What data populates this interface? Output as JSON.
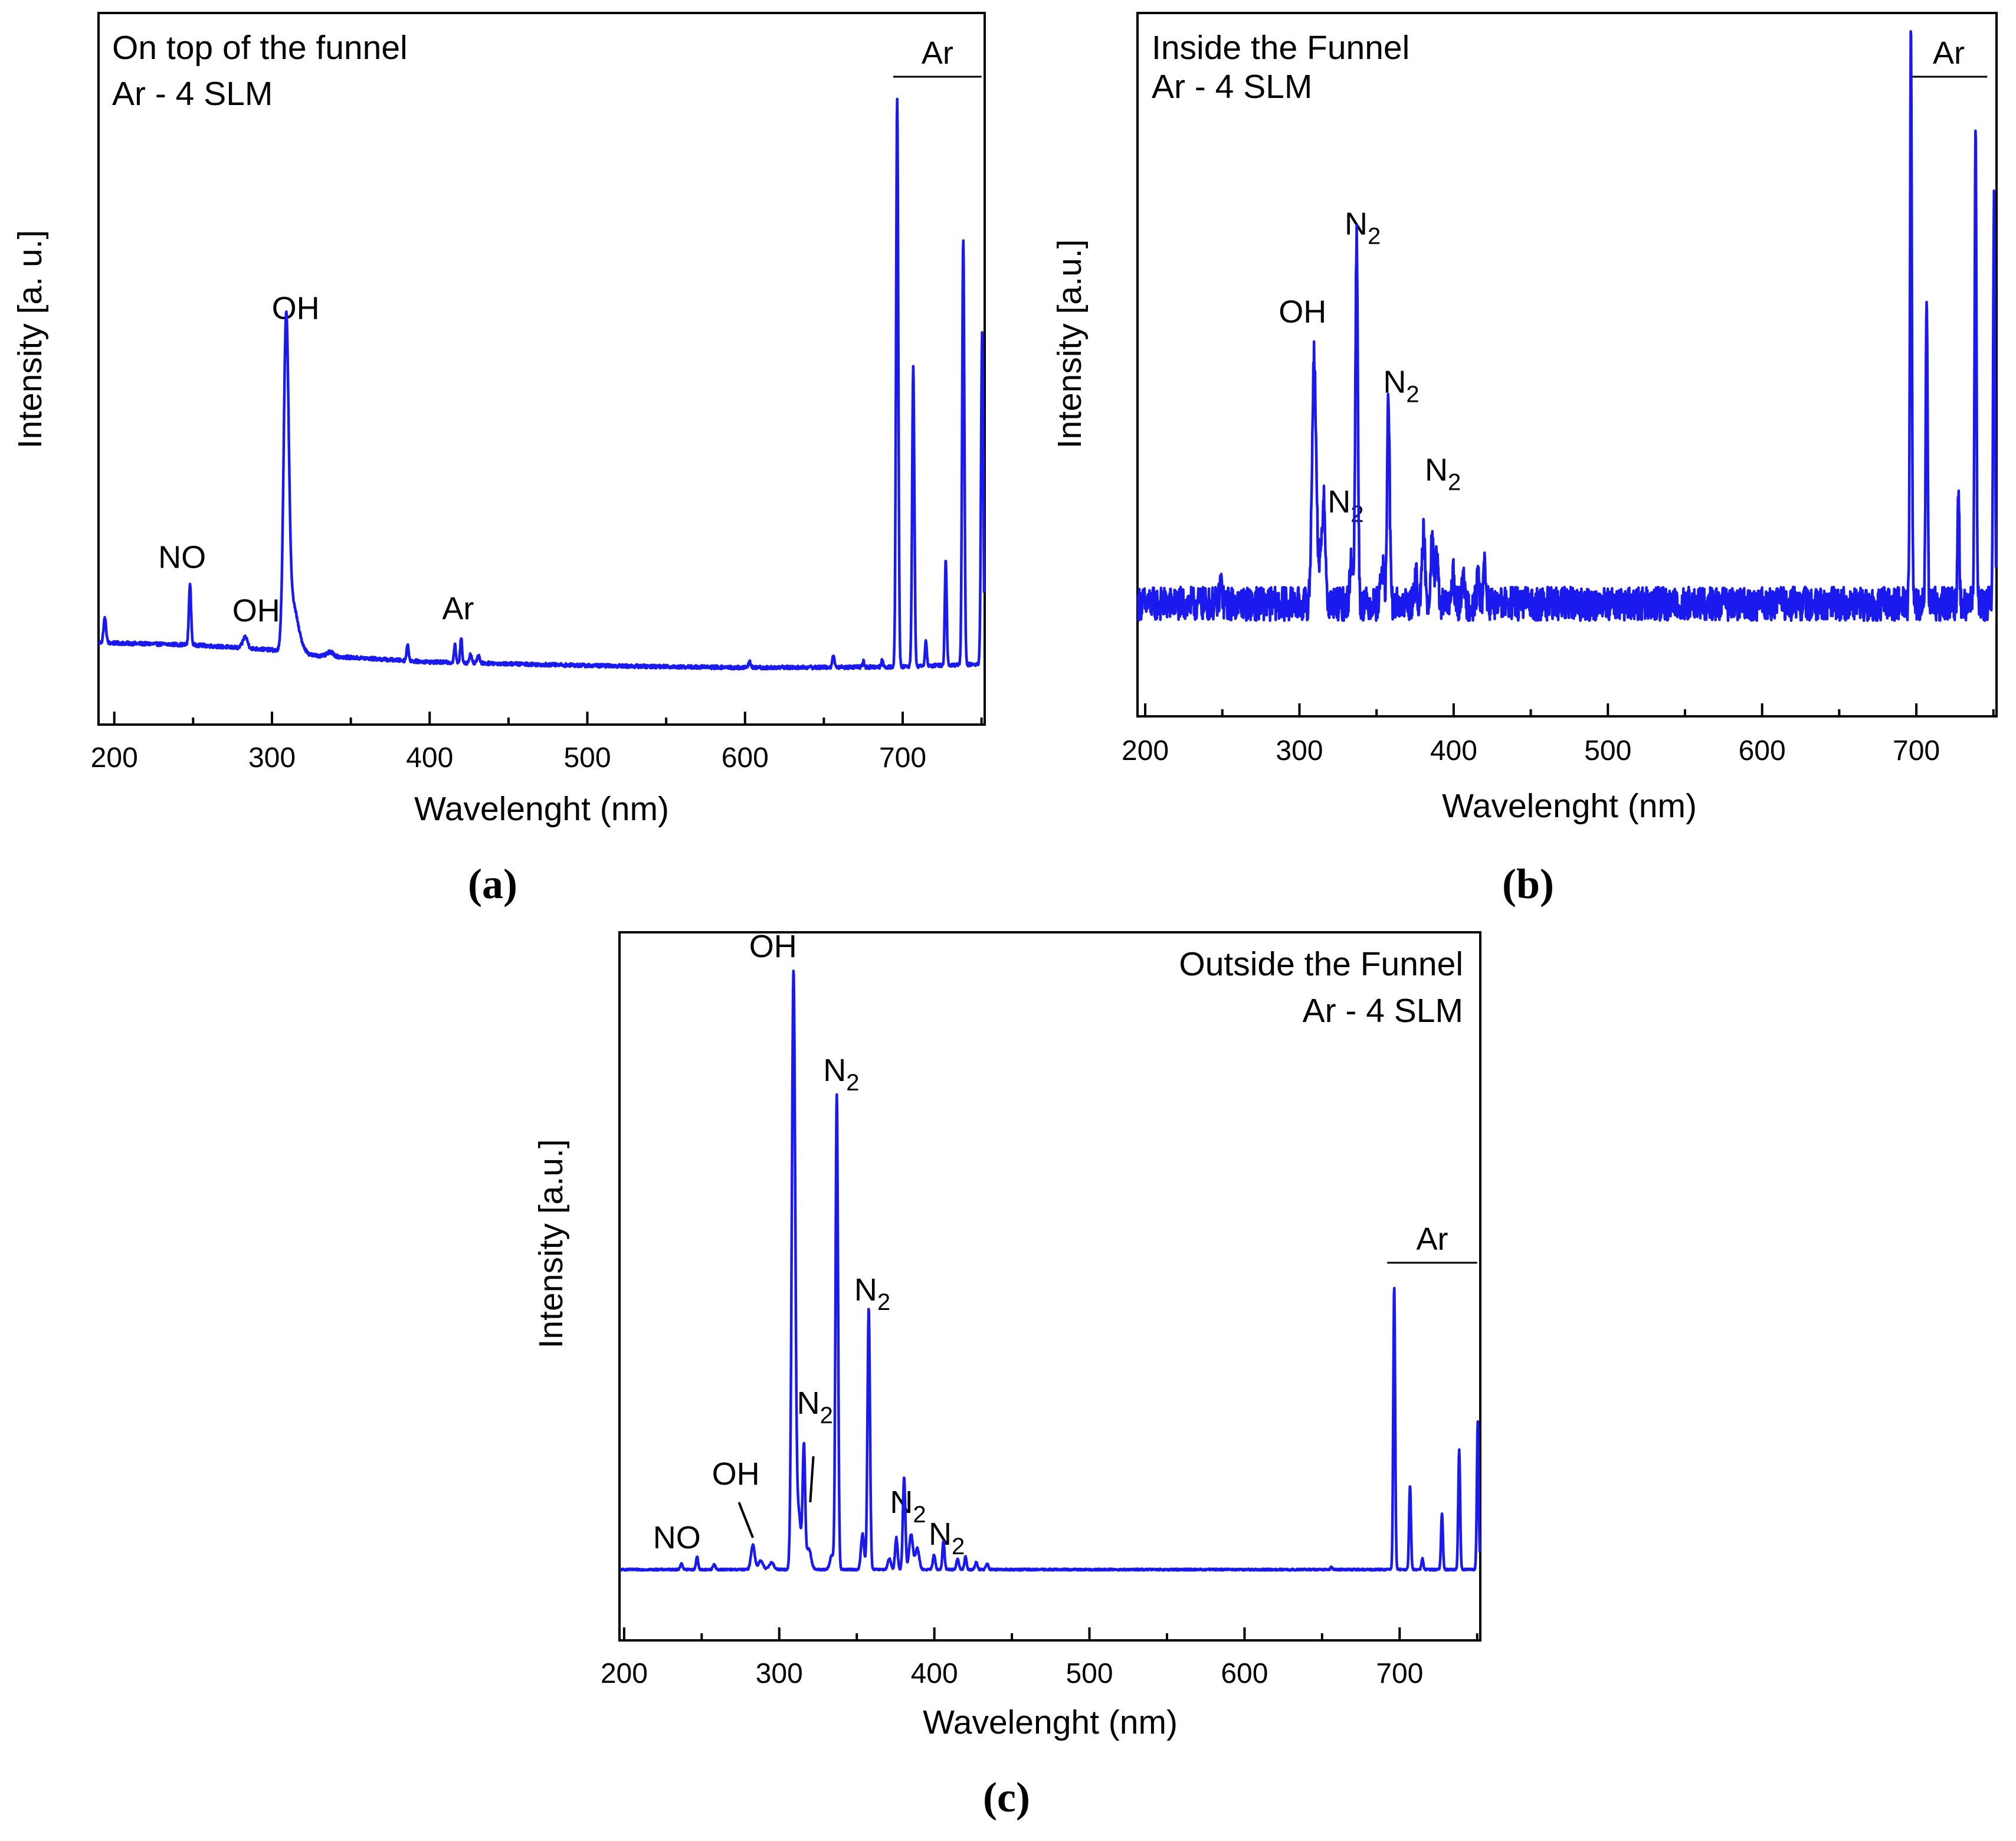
{
  "figure_labels": [
    "(a)",
    "(b)",
    "(c)"
  ],
  "chart_data": [
    {
      "id": "a",
      "type": "line",
      "panel_label": "(a)",
      "title_lines": [
        "On top of the funnel",
        "Ar - 4 SLM"
      ],
      "xlabel": "Wavelenght (nm)",
      "ylabel": "Intensity [a. u.]",
      "xlim": [
        190,
        752
      ],
      "ylim": [
        0,
        100
      ],
      "xticks": [
        200,
        300,
        400,
        500,
        600,
        700
      ],
      "xtick_labels": [
        "200",
        "300",
        "400",
        "500",
        "600",
        "700"
      ],
      "series": [
        {
          "name": "spectrum",
          "color": "#1a1aee",
          "baseline": [
            [
              192,
              11.5
            ],
            [
              250,
              11.2
            ],
            [
              300,
              10.5
            ],
            [
              320,
              9.8
            ],
            [
              400,
              8.8
            ],
            [
              500,
              8.3
            ],
            [
              600,
              8.0
            ],
            [
              690,
              8.1
            ],
            [
              752,
              8.5
            ]
          ],
          "noise": 0.25,
          "peaks": [
            {
              "x": 194,
              "h": 3.5,
              "w": 0.8
            },
            {
              "x": 248,
              "h": 8.5,
              "w": 0.7
            },
            {
              "x": 283,
              "h": 1.6,
              "w": 1.5
            },
            {
              "x": 309,
              "h": 46,
              "w": 1.6
            },
            {
              "x": 313,
              "h": 6,
              "w": 2.5
            },
            {
              "x": 317,
              "h": 2,
              "w": 3
            },
            {
              "x": 337,
              "h": 0.6,
              "w": 2
            },
            {
              "x": 386,
              "h": 2.2,
              "w": 0.7
            },
            {
              "x": 416,
              "h": 2.5,
              "w": 0.6
            },
            {
              "x": 420,
              "h": 3.5,
              "w": 0.6
            },
            {
              "x": 426,
              "h": 1.2,
              "w": 0.8
            },
            {
              "x": 431,
              "h": 1.0,
              "w": 0.8
            },
            {
              "x": 603,
              "h": 0.8,
              "w": 0.8
            },
            {
              "x": 656,
              "h": 1.8,
              "w": 0.6
            },
            {
              "x": 675,
              "h": 0.8,
              "w": 0.6
            },
            {
              "x": 687,
              "h": 1.0,
              "w": 0.6
            },
            {
              "x": 696.5,
              "h": 80,
              "w": 0.7
            },
            {
              "x": 706.7,
              "h": 42,
              "w": 0.7
            },
            {
              "x": 714.7,
              "h": 3.5,
              "w": 0.6
            },
            {
              "x": 727.3,
              "h": 15,
              "w": 0.6
            },
            {
              "x": 738.4,
              "h": 60,
              "w": 0.7
            },
            {
              "x": 750.4,
              "h": 47,
              "w": 0.7
            }
          ]
        }
      ],
      "annotations": [
        {
          "text": "NO",
          "x": 243,
          "y": 22
        },
        {
          "text": "OH",
          "x": 290,
          "y": 14.5
        },
        {
          "text": "OH",
          "x": 315,
          "y": 57
        },
        {
          "text": "Ar",
          "x": 418,
          "y": 14.8
        }
      ],
      "region_labels": [
        {
          "text": "Ar",
          "x_from": 694,
          "x_to": 750
        }
      ]
    },
    {
      "id": "b",
      "type": "line",
      "panel_label": "(b)",
      "title_lines": [
        "Inside the Funnel",
        "Ar - 4 SLM"
      ],
      "xlabel": "Wavelenght (nm)",
      "ylabel": "Intensity [a.u.]",
      "xlim": [
        195,
        752
      ],
      "ylim": [
        0,
        100
      ],
      "xticks": [
        200,
        300,
        400,
        500,
        600,
        700
      ],
      "xtick_labels": [
        "200",
        "300",
        "400",
        "500",
        "600",
        "700"
      ],
      "series": [
        {
          "name": "spectrum",
          "color": "#1a1aee",
          "baseline": [
            [
              195,
              16
            ],
            [
              400,
              16
            ],
            [
              500,
              16
            ],
            [
              752,
              16
            ]
          ],
          "noise": 2.4,
          "peaks": [
            {
              "x": 249,
              "h": 3,
              "w": 0.8
            },
            {
              "x": 309.5,
              "h": 35,
              "w": 1.3
            },
            {
              "x": 315.9,
              "h": 14,
              "w": 0.9
            },
            {
              "x": 313.5,
              "h": 6,
              "w": 1.5
            },
            {
              "x": 337.1,
              "h": 52,
              "w": 0.8
            },
            {
              "x": 333.9,
              "h": 6,
              "w": 1.2
            },
            {
              "x": 357.7,
              "h": 30,
              "w": 0.8
            },
            {
              "x": 353.7,
              "h": 5,
              "w": 1.2
            },
            {
              "x": 375.5,
              "h": 4,
              "w": 0.8
            },
            {
              "x": 380.5,
              "h": 10,
              "w": 0.9
            },
            {
              "x": 386,
              "h": 10,
              "w": 0.9
            },
            {
              "x": 389,
              "h": 6,
              "w": 0.9
            },
            {
              "x": 399.8,
              "h": 4,
              "w": 0.8
            },
            {
              "x": 405.9,
              "h": 4,
              "w": 0.8
            },
            {
              "x": 415.9,
              "h": 4,
              "w": 0.8
            },
            {
              "x": 420.1,
              "h": 6,
              "w": 0.8
            },
            {
              "x": 696.5,
              "h": 82,
              "w": 0.6
            },
            {
              "x": 706.7,
              "h": 44,
              "w": 0.6
            },
            {
              "x": 727.3,
              "h": 16,
              "w": 0.6
            },
            {
              "x": 738.4,
              "h": 68,
              "w": 0.6
            },
            {
              "x": 750.4,
              "h": 58,
              "w": 0.6
            }
          ]
        }
      ],
      "annotations": [
        {
          "text": "OH",
          "x": 302,
          "y": 56
        },
        {
          "text": "N",
          "sub": "2",
          "x": 330,
          "y": 29
        },
        {
          "text": "N",
          "sub": "2",
          "x": 341,
          "y": 68.5
        },
        {
          "text": "N",
          "sub": "2",
          "x": 366,
          "y": 46
        },
        {
          "text": "N",
          "sub": "2",
          "x": 393,
          "y": 33.5
        }
      ],
      "region_labels": [
        {
          "text": "Ar",
          "x_from": 696,
          "x_to": 746
        }
      ]
    },
    {
      "id": "c",
      "type": "line",
      "panel_label": "(c)",
      "title_lines": [
        "Outside the Funnel",
        "Ar - 4 SLM"
      ],
      "title_align": "right",
      "xlabel": "Wavelenght (nm)",
      "ylabel": "Intensity [a.u.]",
      "xlim": [
        197,
        752
      ],
      "ylim": [
        0,
        100
      ],
      "xticks": [
        200,
        300,
        400,
        500,
        600,
        700
      ],
      "xtick_labels": [
        "200",
        "300",
        "400",
        "500",
        "600",
        "700"
      ],
      "series": [
        {
          "name": "spectrum",
          "color": "#1a1aee",
          "baseline": [
            [
              197,
              10
            ],
            [
              752,
              10
            ]
          ],
          "noise": 0.12,
          "peaks": [
            {
              "x": 237,
              "h": 0.8,
              "w": 0.8
            },
            {
              "x": 247,
              "h": 1.8,
              "w": 0.7
            },
            {
              "x": 258,
              "h": 0.7,
              "w": 0.8
            },
            {
              "x": 283,
              "h": 3.5,
              "w": 1.2
            },
            {
              "x": 288,
              "h": 1.2,
              "w": 1.5
            },
            {
              "x": 295,
              "h": 1.0,
              "w": 1.5
            },
            {
              "x": 309.2,
              "h": 84,
              "w": 1.1
            },
            {
              "x": 312.5,
              "h": 8,
              "w": 1.5
            },
            {
              "x": 315.9,
              "h": 17,
              "w": 0.8
            },
            {
              "x": 319,
              "h": 3,
              "w": 1.5
            },
            {
              "x": 337.1,
              "h": 67,
              "w": 0.8
            },
            {
              "x": 333.9,
              "h": 2,
              "w": 1.2
            },
            {
              "x": 353.7,
              "h": 5,
              "w": 1.0
            },
            {
              "x": 357.7,
              "h": 37,
              "w": 0.8
            },
            {
              "x": 371,
              "h": 1.5,
              "w": 1.0
            },
            {
              "x": 375.5,
              "h": 4.5,
              "w": 0.8
            },
            {
              "x": 380.5,
              "h": 13,
              "w": 0.8
            },
            {
              "x": 385,
              "h": 5,
              "w": 1.2
            },
            {
              "x": 389,
              "h": 3,
              "w": 1.2
            },
            {
              "x": 399.8,
              "h": 2,
              "w": 0.8
            },
            {
              "x": 405.9,
              "h": 4,
              "w": 0.7
            },
            {
              "x": 415,
              "h": 1.5,
              "w": 0.8
            },
            {
              "x": 420.1,
              "h": 1.8,
              "w": 0.7
            },
            {
              "x": 427,
              "h": 1.0,
              "w": 0.8
            },
            {
              "x": 434,
              "h": 0.8,
              "w": 0.8
            },
            {
              "x": 656,
              "h": 0.4,
              "w": 0.6
            },
            {
              "x": 696.5,
              "h": 40,
              "w": 0.6
            },
            {
              "x": 706.7,
              "h": 12,
              "w": 0.6
            },
            {
              "x": 714.7,
              "h": 1.5,
              "w": 0.6
            },
            {
              "x": 727.3,
              "h": 8,
              "w": 0.6
            },
            {
              "x": 738.4,
              "h": 17,
              "w": 0.6
            },
            {
              "x": 750.4,
              "h": 21,
              "w": 0.6
            }
          ]
        }
      ],
      "annotations": [
        {
          "text": "NO",
          "x": 234,
          "y": 13
        },
        {
          "text": "OH",
          "x": 272,
          "y": 22
        },
        {
          "text": "OH",
          "x": 296,
          "y": 96.5
        },
        {
          "text": "N",
          "sub": "2",
          "x": 340,
          "y": 79
        },
        {
          "text": "N",
          "sub": "2",
          "x": 360,
          "y": 48
        },
        {
          "text": "N",
          "sub": "2",
          "x": 323,
          "y": 32
        },
        {
          "text": "N",
          "sub": "2",
          "x": 383,
          "y": 18
        },
        {
          "text": "N",
          "sub": "2",
          "x": 408,
          "y": 13.5
        }
      ],
      "pointer_lines": [
        {
          "x1": 283,
          "y1": 14.5,
          "x2": 274,
          "y2": 19.5
        },
        {
          "x1": 320,
          "y1": 19.5,
          "x2": 322,
          "y2": 26
        }
      ],
      "region_labels": [
        {
          "text": "Ar",
          "x_from": 692,
          "x_to": 750
        }
      ]
    }
  ]
}
